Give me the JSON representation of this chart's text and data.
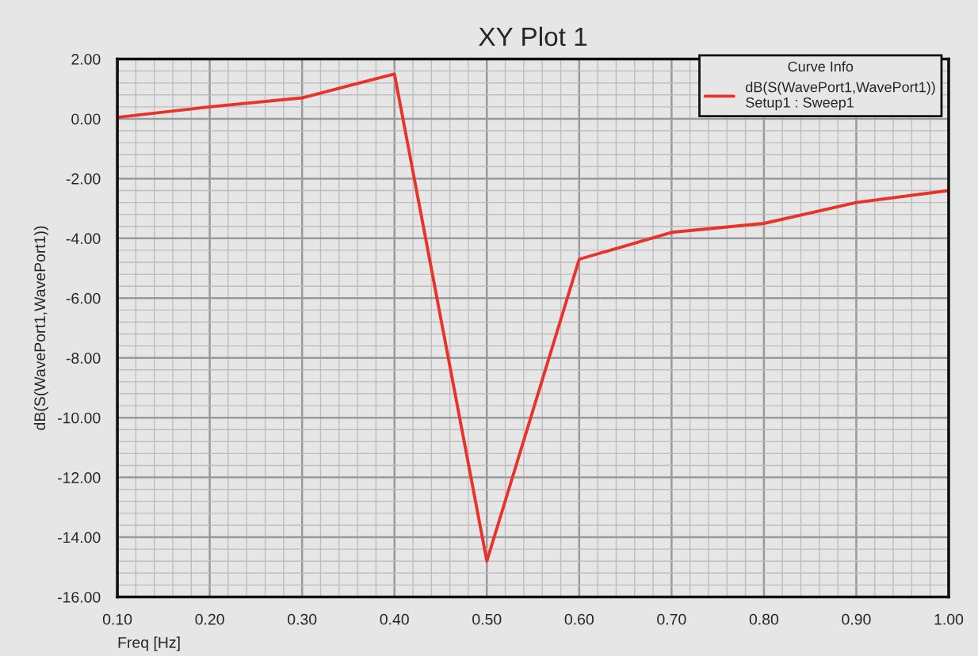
{
  "chart_data": {
    "type": "line",
    "title": "XY Plot 1",
    "xlabel": "Freq [Hz]",
    "ylabel": "dB(S(WavePort1,WavePort1))",
    "legend_title": "Curve Info",
    "legend": "top right",
    "grid": true,
    "line_style": "solid",
    "marker": "none",
    "xlim": [
      0.1,
      1.0
    ],
    "xticks": [
      {
        "value": 0.1,
        "label": "0.10"
      },
      {
        "value": 0.2,
        "label": "0.20"
      },
      {
        "value": 0.3,
        "label": "0.30"
      },
      {
        "value": 0.4,
        "label": "0.40"
      },
      {
        "value": 0.5,
        "label": "0.50"
      },
      {
        "value": 0.6,
        "label": "0.60"
      },
      {
        "value": 0.7,
        "label": "0.70"
      },
      {
        "value": 0.8,
        "label": "0.80"
      },
      {
        "value": 0.9,
        "label": "0.90"
      },
      {
        "value": 1.0,
        "label": "1.00"
      }
    ],
    "ylim": [
      -16,
      2
    ],
    "yticks": [
      {
        "value": -16,
        "label": "-16.00"
      },
      {
        "value": -14,
        "label": "-14.00"
      },
      {
        "value": -12,
        "label": "-12.00"
      },
      {
        "value": -10,
        "label": "-10.00"
      },
      {
        "value": -8,
        "label": "-8.00"
      },
      {
        "value": -6,
        "label": "-6.00"
      },
      {
        "value": -4,
        "label": "-4.00"
      },
      {
        "value": -2,
        "label": "-2.00"
      },
      {
        "value": 0,
        "label": "0.00"
      },
      {
        "value": 2,
        "label": "2.00"
      }
    ],
    "series": [
      {
        "name": "dB(S(WavePort1,WavePort1))\nSetup1 : Sweep1",
        "color": "#e8332b",
        "x": [
          0.1,
          0.2,
          0.3,
          0.35,
          0.4,
          0.5,
          0.6,
          0.7,
          0.8,
          0.9,
          1.0
        ],
        "values": [
          0.05,
          0.4,
          0.7,
          1.1,
          1.5,
          -14.8,
          -4.7,
          -3.8,
          -3.5,
          -2.8,
          -2.4
        ]
      }
    ]
  }
}
